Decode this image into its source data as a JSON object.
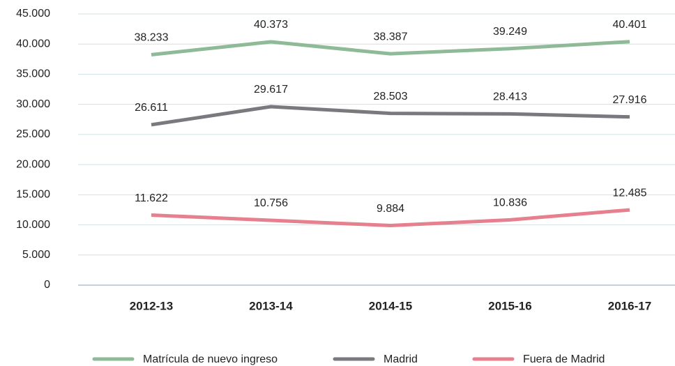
{
  "chart_data": {
    "type": "line",
    "categories": [
      "2012-13",
      "2013-14",
      "2014-15",
      "2015-16",
      "2016-17"
    ],
    "series": [
      {
        "name": "Matrícula de nuevo ingreso",
        "color": "#8fba97",
        "values": [
          38233,
          40373,
          38387,
          39249,
          40401
        ],
        "value_labels": [
          "38.233",
          "40.373",
          "38.387",
          "39.249",
          "40.401"
        ]
      },
      {
        "name": "Madrid",
        "color": "#7a7a7e",
        "values": [
          26611,
          29617,
          28503,
          28413,
          27916
        ],
        "value_labels": [
          "26.611",
          "29.617",
          "28.503",
          "28.413",
          "27.916"
        ]
      },
      {
        "name": "Fuera de Madrid",
        "color": "#e67f8e",
        "values": [
          11622,
          10756,
          9884,
          10836,
          12485
        ],
        "value_labels": [
          "11.622",
          "10.756",
          "9.884",
          "10.836",
          "12.485"
        ]
      }
    ],
    "ylim": [
      0,
      45000
    ],
    "yticks": [
      0,
      {
        "value": 5000,
        "label": "5.000"
      },
      {
        "value": 10000,
        "label": "10.000"
      },
      {
        "value": 15000,
        "label": "15.000"
      },
      {
        "value": 20000,
        "label": "20.000"
      },
      {
        "value": 25000,
        "label": "25.000"
      },
      {
        "value": 30000,
        "label": "30.000"
      },
      {
        "value": 35000,
        "label": "35.000"
      },
      {
        "value": 40000,
        "label": "40.000"
      },
      {
        "value": 45000,
        "label": "45.000"
      }
    ],
    "grid": true,
    "legend": "bottom"
  }
}
